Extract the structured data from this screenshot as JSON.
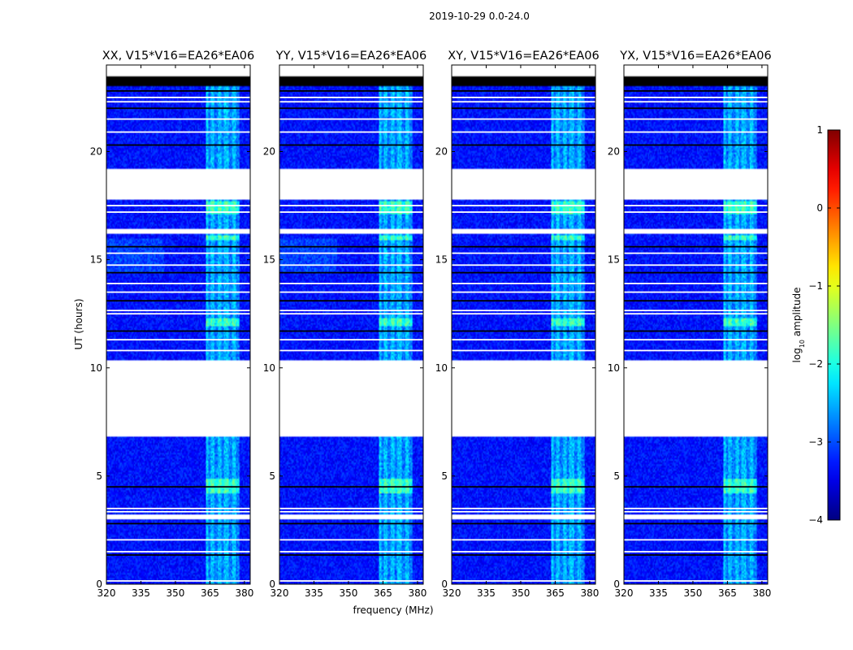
{
  "figure": {
    "suptitle": "2019-10-29 0.0-24.0"
  },
  "chart_data": {
    "type": "heatmap",
    "title": "2019-10-29 0.0-24.0",
    "xlabel": "frequency (MHz)",
    "ylabel": "UT (hours)",
    "xlim": [
      320,
      382.5
    ],
    "ylim": [
      0,
      24
    ],
    "xticks": [
      320,
      335,
      350,
      365,
      380
    ],
    "yticks": [
      0,
      5,
      10,
      15,
      20
    ],
    "colorbar": {
      "label": "log10 amplitude",
      "label_base": "log",
      "label_sub": "10",
      "label_rest": " amplitude",
      "range": [
        -4,
        1
      ],
      "ticks": [
        1,
        0,
        -1,
        -2,
        -3,
        -4
      ],
      "tick_labels": [
        "1",
        "0",
        "−1",
        "−2",
        "−3",
        "−4"
      ],
      "colormap": "jet"
    },
    "panels": [
      {
        "title": "XX, V15*V16=EA26*EA06",
        "pol": "XX"
      },
      {
        "title": "YY, V15*V16=EA26*EA06",
        "pol": "YY"
      },
      {
        "title": "XY, V15*V16=EA26*EA06",
        "pol": "XY"
      },
      {
        "title": "YX, V15*V16=EA26*EA06",
        "pol": "YX"
      }
    ],
    "background_log_amp": -3.3,
    "rfi_band_mhz": [
      363,
      377
    ],
    "rfi_channels_mhz": [
      363.5,
      366,
      369.2,
      372,
      375.5
    ],
    "missing_ut_ranges": [
      [
        6.8,
        10.35
      ],
      [
        17.8,
        19.2
      ],
      [
        16.2,
        16.4
      ],
      [
        3.0,
        3.2
      ],
      [
        23.0,
        24.0
      ]
    ],
    "flagged_ut_rows": [
      0.15,
      1.35,
      1.5,
      2.05,
      2.8,
      3.35,
      3.5,
      4.5,
      10.8,
      11.3,
      11.7,
      12.5,
      12.65,
      13.1,
      13.5,
      13.9,
      14.4,
      14.75,
      15.3,
      15.6,
      17.2,
      17.5,
      20.3,
      20.9,
      21.5,
      22.0,
      22.3,
      22.5,
      22.8
    ],
    "strong_rfi_ut_ranges": [
      [
        11.9,
        12.3
      ],
      [
        4.2,
        4.9
      ],
      [
        15.9,
        16.1
      ],
      [
        17.1,
        17.7
      ]
    ]
  }
}
